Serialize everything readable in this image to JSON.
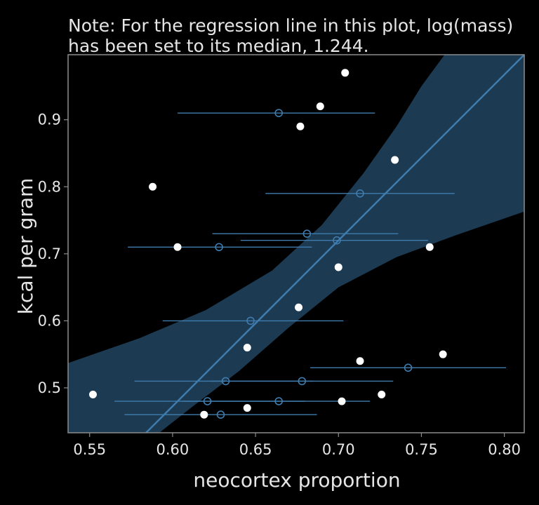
{
  "chart_data": {
    "type": "scatter",
    "title": "Note: For the regression line in this plot, log(mass)",
    "subtitle": "has been set to its median, 1.244.",
    "xlabel": "neocortex proportion",
    "ylabel": "kcal per gram",
    "xlim": [
      0.537,
      0.812
    ],
    "ylim": [
      0.433,
      0.997
    ],
    "x_ticks": [
      "0.55",
      "0.60",
      "0.65",
      "0.70",
      "0.75",
      "0.80"
    ],
    "x_tick_values": [
      0.55,
      0.6,
      0.65,
      0.7,
      0.75,
      0.8
    ],
    "y_ticks": [
      "0.5",
      "0.6",
      "0.7",
      "0.8",
      "0.9"
    ],
    "y_tick_values": [
      0.5,
      0.6,
      0.7,
      0.8,
      0.9
    ],
    "grid": false,
    "colors": {
      "observed": "#ffffff",
      "imputed": "#3f7cad",
      "band": "#1c3a52",
      "line": "#3f7cad",
      "frame": "#8c8c8c"
    },
    "observed_points": [
      {
        "x": 0.552,
        "y": 0.49
      },
      {
        "x": 0.588,
        "y": 0.8
      },
      {
        "x": 0.603,
        "y": 0.71
      },
      {
        "x": 0.619,
        "y": 0.46
      },
      {
        "x": 0.645,
        "y": 0.56
      },
      {
        "x": 0.645,
        "y": 0.47
      },
      {
        "x": 0.676,
        "y": 0.62
      },
      {
        "x": 0.677,
        "y": 0.89
      },
      {
        "x": 0.689,
        "y": 0.92
      },
      {
        "x": 0.7,
        "y": 0.68
      },
      {
        "x": 0.702,
        "y": 0.48
      },
      {
        "x": 0.704,
        "y": 0.97
      },
      {
        "x": 0.713,
        "y": 0.54
      },
      {
        "x": 0.726,
        "y": 0.49
      },
      {
        "x": 0.734,
        "y": 0.84
      },
      {
        "x": 0.755,
        "y": 0.71
      },
      {
        "x": 0.763,
        "y": 0.55
      }
    ],
    "imputed_points": [
      {
        "x": 0.664,
        "y": 0.91,
        "lower": 0.603,
        "upper": 0.722
      },
      {
        "x": 0.713,
        "y": 0.79,
        "lower": 0.656,
        "upper": 0.77
      },
      {
        "x": 0.681,
        "y": 0.73,
        "lower": 0.624,
        "upper": 0.736
      },
      {
        "x": 0.699,
        "y": 0.72,
        "lower": 0.641,
        "upper": 0.754
      },
      {
        "x": 0.628,
        "y": 0.71,
        "lower": 0.573,
        "upper": 0.684
      },
      {
        "x": 0.647,
        "y": 0.6,
        "lower": 0.594,
        "upper": 0.703
      },
      {
        "x": 0.742,
        "y": 0.53,
        "lower": 0.683,
        "upper": 0.801
      },
      {
        "x": 0.632,
        "y": 0.51,
        "lower": 0.577,
        "upper": 0.685
      },
      {
        "x": 0.678,
        "y": 0.51,
        "lower": 0.623,
        "upper": 0.733
      },
      {
        "x": 0.621,
        "y": 0.48,
        "lower": 0.565,
        "upper": 0.68
      },
      {
        "x": 0.664,
        "y": 0.48,
        "lower": 0.606,
        "upper": 0.719
      },
      {
        "x": 0.629,
        "y": 0.46,
        "lower": 0.571,
        "upper": 0.687
      }
    ],
    "regression_line": [
      {
        "x": 0.584,
        "y": 0.433
      },
      {
        "x": 0.812,
        "y": 0.997
      }
    ],
    "confidence_band": {
      "upper": [
        {
          "x": 0.537,
          "y": 0.537
        },
        {
          "x": 0.58,
          "y": 0.574
        },
        {
          "x": 0.62,
          "y": 0.616
        },
        {
          "x": 0.66,
          "y": 0.675
        },
        {
          "x": 0.69,
          "y": 0.743
        },
        {
          "x": 0.715,
          "y": 0.82
        },
        {
          "x": 0.735,
          "y": 0.89
        },
        {
          "x": 0.75,
          "y": 0.95
        },
        {
          "x": 0.764,
          "y": 0.997
        }
      ],
      "lower": [
        {
          "x": 0.592,
          "y": 0.433
        },
        {
          "x": 0.612,
          "y": 0.472
        },
        {
          "x": 0.64,
          "y": 0.525
        },
        {
          "x": 0.67,
          "y": 0.59
        },
        {
          "x": 0.7,
          "y": 0.65
        },
        {
          "x": 0.735,
          "y": 0.695
        },
        {
          "x": 0.77,
          "y": 0.727
        },
        {
          "x": 0.812,
          "y": 0.763
        }
      ]
    }
  }
}
